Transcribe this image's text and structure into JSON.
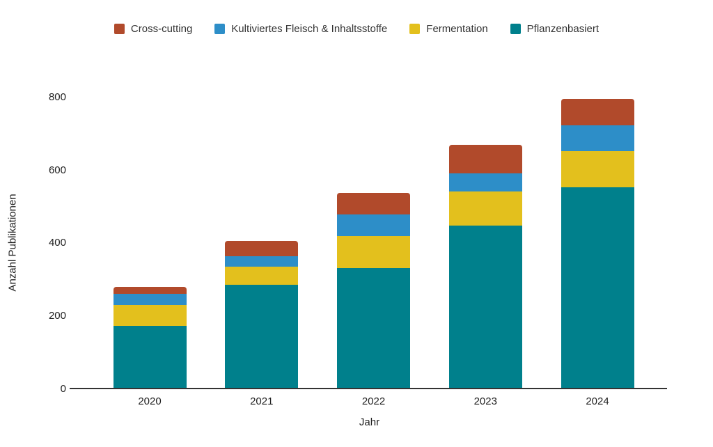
{
  "chart_data": {
    "type": "bar",
    "stacked": true,
    "title": "",
    "xlabel": "Jahr",
    "ylabel": "Anzahl Publikationen",
    "categories": [
      "2020",
      "2021",
      "2022",
      "2023",
      "2024"
    ],
    "series": [
      {
        "name": "Pflanzenbasiert",
        "color": "#00808C",
        "values": [
          173,
          286,
          333,
          448,
          554
        ]
      },
      {
        "name": "Fermentation",
        "color": "#E3C01D",
        "values": [
          58,
          50,
          86,
          94,
          98
        ]
      },
      {
        "name": "Kultiviertes Fleisch & Inhaltsstoffe",
        "color": "#2D8EC8",
        "values": [
          31,
          29,
          61,
          50,
          72
        ]
      },
      {
        "name": "Cross-cutting",
        "color": "#B14A2B",
        "values": [
          19,
          41,
          58,
          78,
          72
        ]
      }
    ],
    "legend_order": [
      "Cross-cutting",
      "Kultiviertes Fleisch & Inhaltsstoffe",
      "Fermentation",
      "Pflanzenbasiert"
    ],
    "legend_position": "top",
    "yticks": [
      0,
      200,
      400,
      600,
      800
    ],
    "ylim": [
      0,
      800
    ],
    "grid": false,
    "background_color": "#FFFFFF",
    "axis_line_color": "#333333",
    "text_color": "#212121"
  }
}
